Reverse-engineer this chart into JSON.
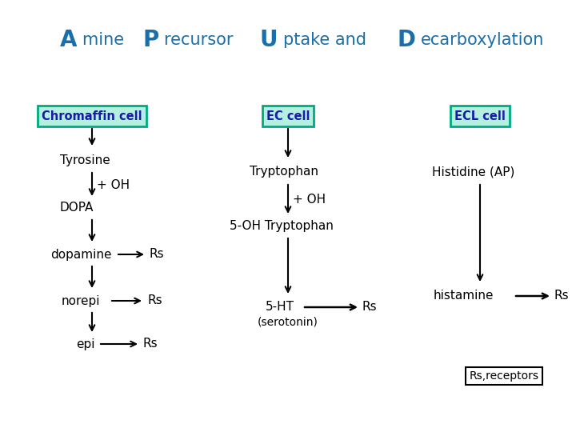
{
  "title_color": "#1a6fab",
  "box_face_color": "#b3f0e0",
  "box_edge_color": "#00aa80",
  "box_text_color": "#1a1aaa",
  "arrow_color": "#000000",
  "text_color": "#000000",
  "bg_color": "#ffffff",
  "title_parts": [
    {
      "text": "A",
      "size": 20,
      "bold": true
    },
    {
      "text": "mine ",
      "size": 15,
      "bold": false
    },
    {
      "text": "P",
      "size": 20,
      "bold": true
    },
    {
      "text": "recursor ",
      "size": 15,
      "bold": false
    },
    {
      "text": "U",
      "size": 20,
      "bold": true
    },
    {
      "text": "ptake and ",
      "size": 15,
      "bold": false
    },
    {
      "text": "D",
      "size": 20,
      "bold": true
    },
    {
      "text": "ecarboxylation",
      "size": 15,
      "bold": false
    }
  ]
}
